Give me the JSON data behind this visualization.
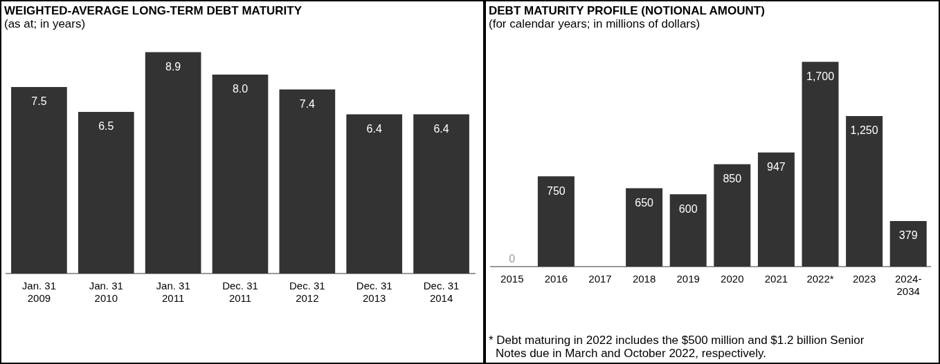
{
  "chart_data": [
    {
      "type": "bar",
      "title": "WEIGHTED-AVERAGE LONG-TERM DEBT MATURITY",
      "subtitle": "(as at; in years)",
      "categories": [
        "Jan. 31\n2009",
        "Jan. 31\n2010",
        "Jan. 31\n2011",
        "Dec. 31\n2011",
        "Dec. 31\n2012",
        "Dec. 31\n2013",
        "Dec. 31\n2014"
      ],
      "values": [
        7.5,
        6.5,
        8.9,
        8.0,
        7.4,
        6.4,
        6.4
      ],
      "value_labels": [
        "7.5",
        "6.5",
        "8.9",
        "8.0",
        "7.4",
        "6.4",
        "6.4"
      ],
      "color": "#333333",
      "grid": false,
      "legend": false
    },
    {
      "type": "bar",
      "title": "DEBT MATURITY PROFILE (NOTIONAL AMOUNT)",
      "subtitle": "(for calendar years; in millions of dollars)",
      "categories": [
        "2015",
        "2016",
        "2017",
        "2018",
        "2019",
        "2020",
        "2021",
        "2022*",
        "2023",
        "2024-\n2034"
      ],
      "values": [
        0,
        750,
        0,
        650,
        600,
        850,
        947,
        1700,
        1250,
        379
      ],
      "value_labels": [
        "0",
        "750",
        null,
        "650",
        "600",
        "850",
        "947",
        "1,700",
        "1,250",
        "379"
      ],
      "color": "#333333",
      "grid": false,
      "legend": false,
      "annotations": [
        "* Debt maturing in 2022 includes the $500 million and $1.2 billion Senior Notes due in March and October 2022, respectively."
      ]
    }
  ]
}
